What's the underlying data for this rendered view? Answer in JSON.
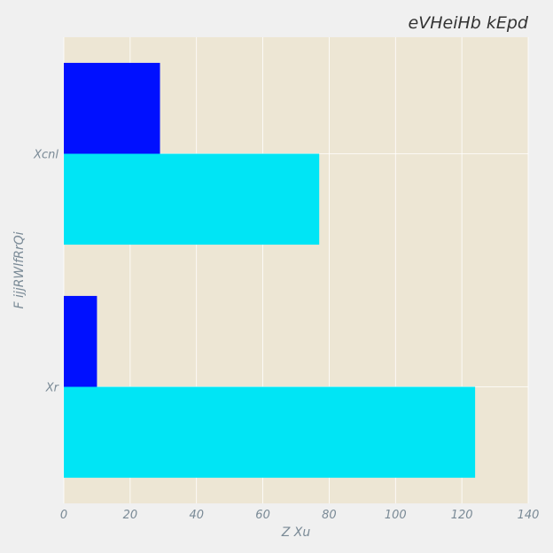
{
  "chart_data": {
    "type": "bar",
    "orientation": "horizontal",
    "title": "eVHeiHb kEpd",
    "xlabel": "Z Xu",
    "ylabel": "F ijjRWlfRrQi",
    "categories": [
      "Xr",
      "Xcnl"
    ],
    "series": [
      {
        "values": [
          124,
          77
        ],
        "color": "#00e5f5"
      },
      {
        "values": [
          10,
          29
        ],
        "color": "#0010ff"
      }
    ],
    "xlim": [
      0,
      140
    ],
    "xticks": [
      0,
      20,
      40,
      60,
      80,
      100,
      120,
      140
    ],
    "grid": true,
    "legend": "none",
    "colors": {
      "plot_background": "#ede6d4",
      "figure_background": "#f0f0f0",
      "grid": "#ffffff",
      "text": "#7a8a96",
      "title": "#333333"
    }
  }
}
